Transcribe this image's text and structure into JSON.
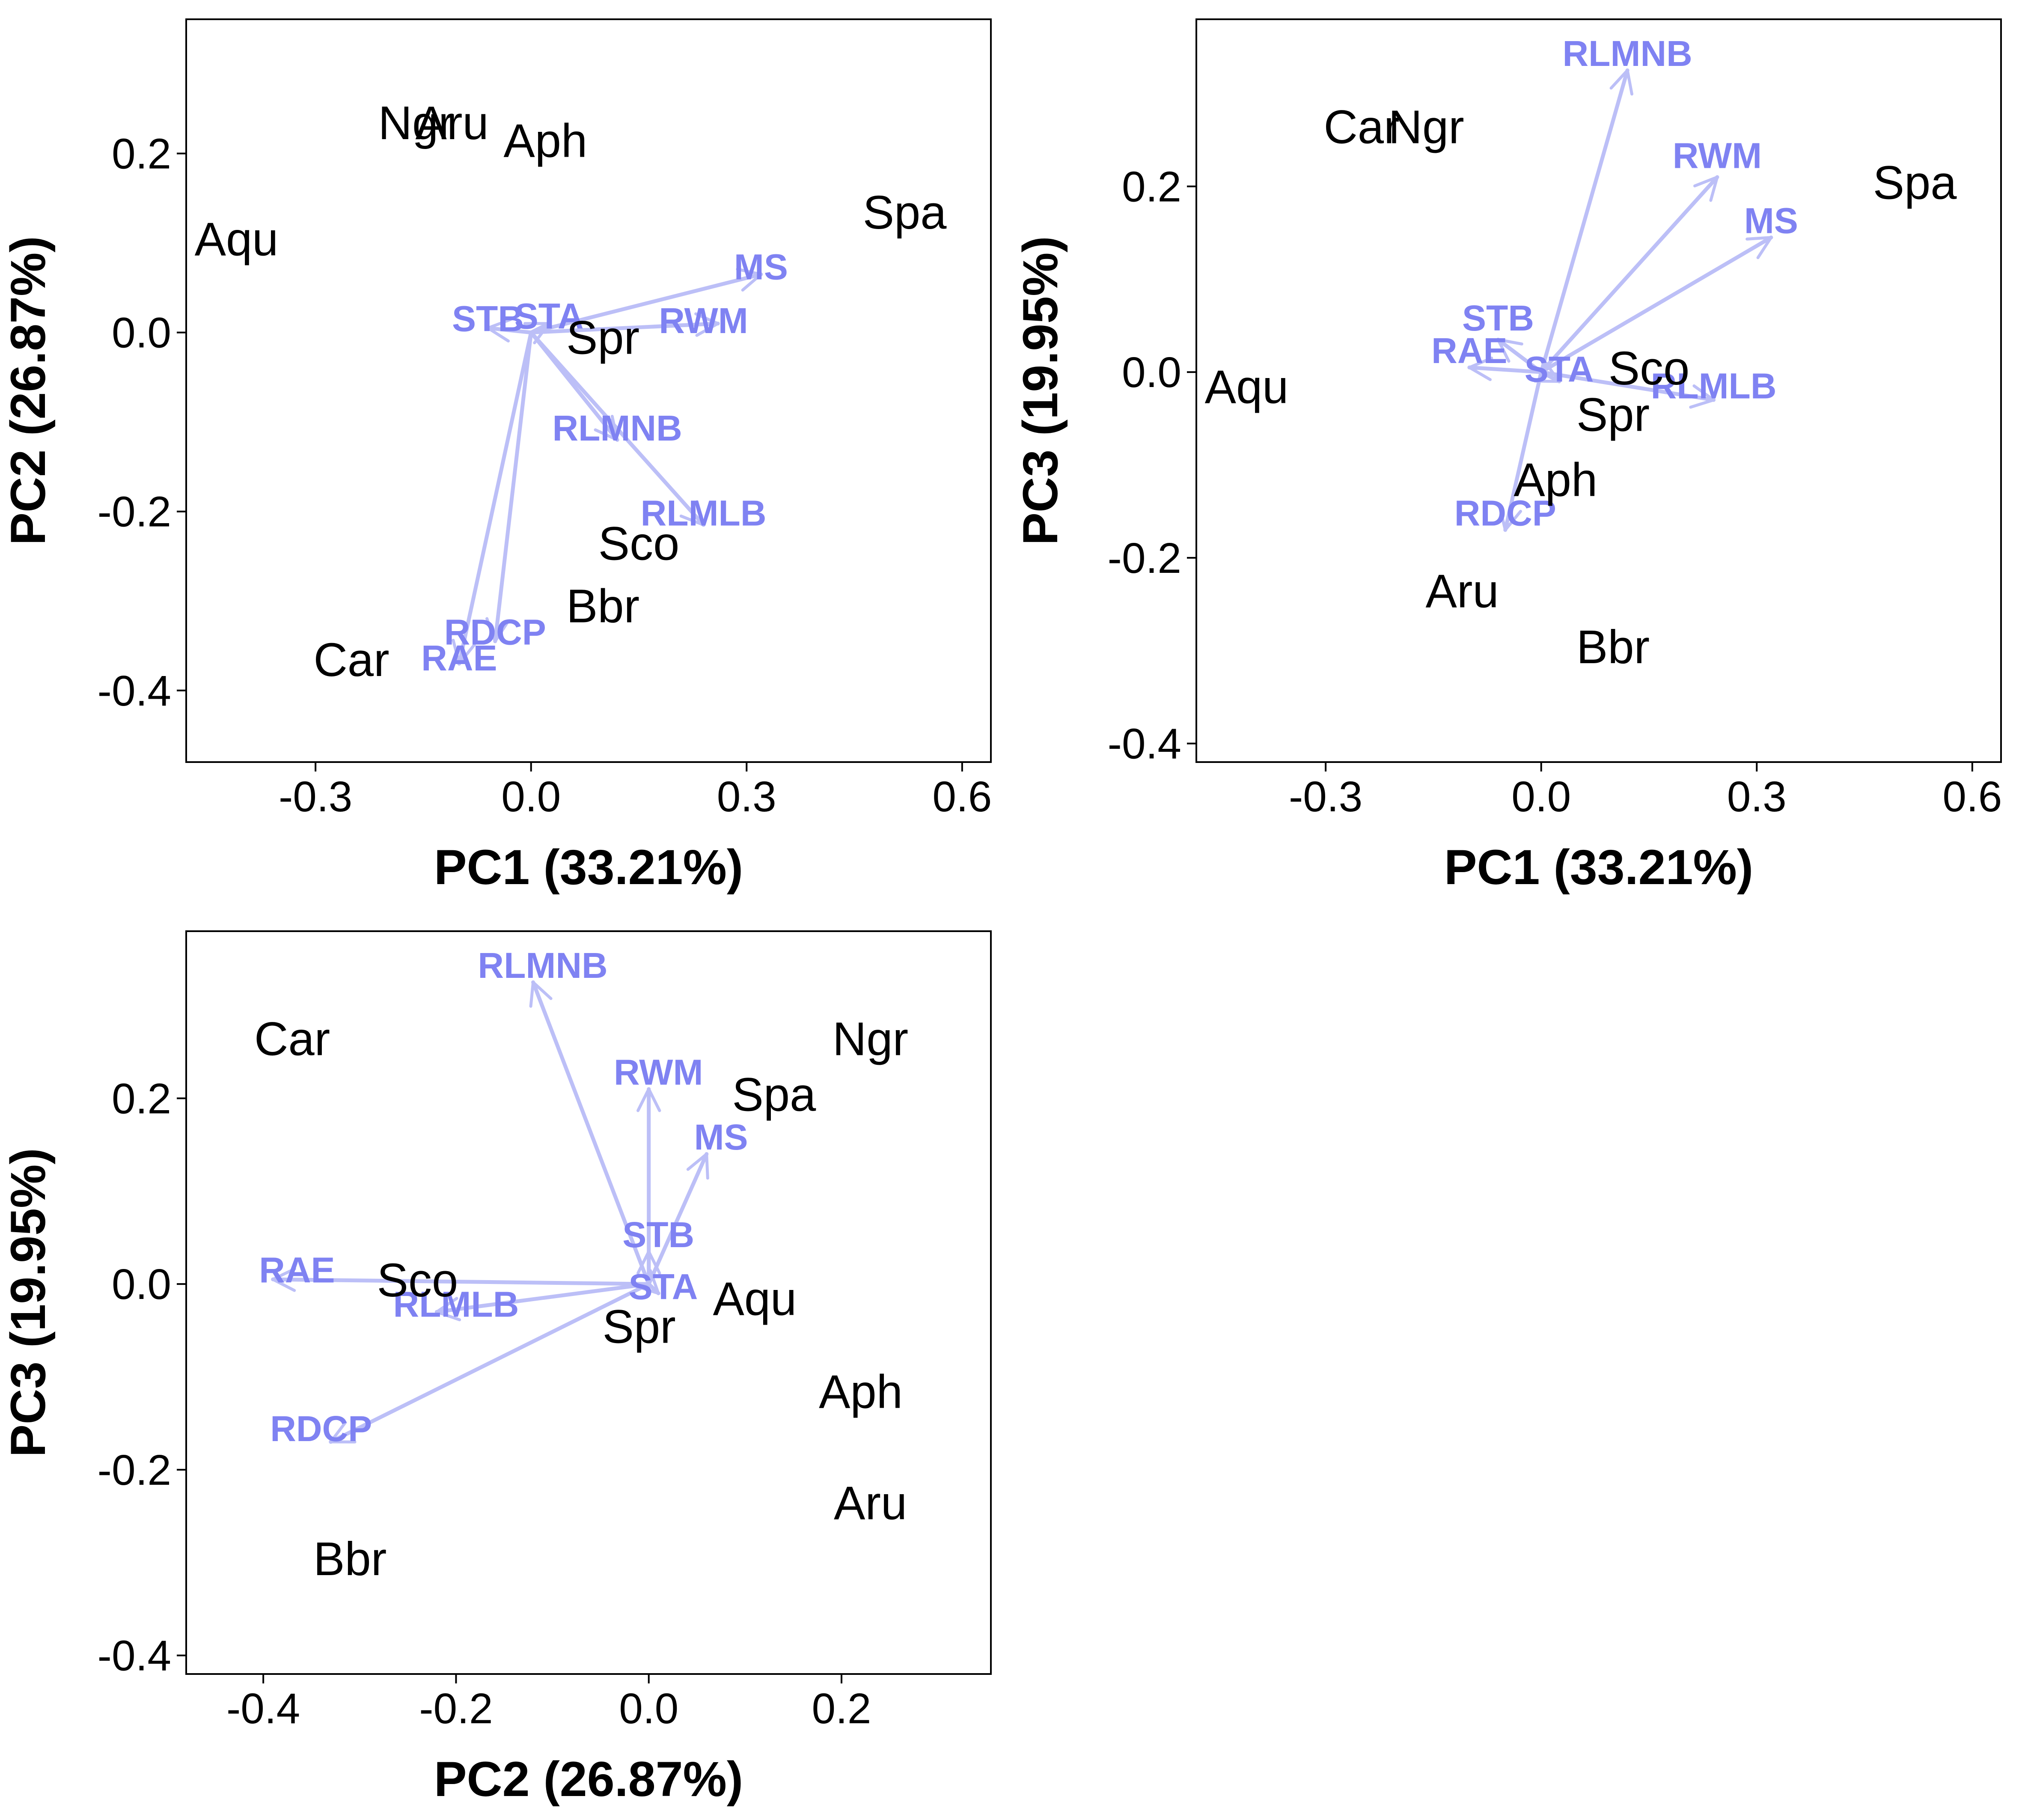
{
  "chart_data": [
    {
      "type": "scatter",
      "subtype": "biplot",
      "xlabel": "PC1 (33.21%)",
      "ylabel": "PC2 (26.87%)",
      "xlim": [
        -0.48,
        0.64
      ],
      "ylim": [
        -0.48,
        0.35
      ],
      "xticks": [
        -0.3,
        0.0,
        0.3,
        0.6
      ],
      "xtick_labels": [
        "-0.3",
        "0.0",
        "0.3",
        "0.6"
      ],
      "yticks": [
        0.2,
        0.0,
        -0.2,
        -0.4
      ],
      "ytick_labels": [
        "0.2",
        "0.0",
        "-0.2",
        "-0.4"
      ],
      "grid": false,
      "points": [
        {
          "label": "Ngr",
          "x": -0.16,
          "y": 0.23
        },
        {
          "label": "Aru",
          "x": -0.11,
          "y": 0.23
        },
        {
          "label": "Aph",
          "x": 0.02,
          "y": 0.21
        },
        {
          "label": "Aqu",
          "x": -0.41,
          "y": 0.1
        },
        {
          "label": "Spa",
          "x": 0.52,
          "y": 0.13
        },
        {
          "label": "Spr",
          "x": 0.1,
          "y": -0.01
        },
        {
          "label": "Sco",
          "x": 0.15,
          "y": -0.24
        },
        {
          "label": "Bbr",
          "x": 0.1,
          "y": -0.31
        },
        {
          "label": "Car",
          "x": -0.25,
          "y": -0.37
        }
      ],
      "loadings": [
        {
          "label": "MS",
          "x": 0.32,
          "y": 0.065,
          "lx": 0.32,
          "ly": 0.07
        },
        {
          "label": "STB",
          "x": -0.06,
          "y": 0.005,
          "lx": -0.06,
          "ly": 0.012
        },
        {
          "label": "STA",
          "x": 0.025,
          "y": 0.01,
          "lx": 0.025,
          "ly": 0.015
        },
        {
          "label": "RWM",
          "x": 0.26,
          "y": 0.01,
          "lx": 0.24,
          "ly": 0.01
        },
        {
          "label": "RLMNB",
          "x": 0.12,
          "y": -0.12,
          "lx": 0.12,
          "ly": -0.11
        },
        {
          "label": "RLMLB",
          "x": 0.24,
          "y": -0.215,
          "lx": 0.24,
          "ly": -0.205
        },
        {
          "label": "RDCP",
          "x": -0.05,
          "y": -0.345,
          "lx": -0.05,
          "ly": -0.338
        },
        {
          "label": "RAE",
          "x": -0.1,
          "y": -0.37,
          "lx": -0.1,
          "ly": -0.367
        }
      ]
    },
    {
      "type": "scatter",
      "subtype": "biplot",
      "xlabel": "PC1 (33.21%)",
      "ylabel": "PC3 (19.95%)",
      "xlim": [
        -0.48,
        0.64
      ],
      "ylim": [
        -0.42,
        0.38
      ],
      "xticks": [
        -0.3,
        0.0,
        0.3,
        0.6
      ],
      "xtick_labels": [
        "-0.3",
        "0.0",
        "0.3",
        "0.6"
      ],
      "yticks": [
        0.2,
        0.0,
        -0.2,
        -0.4
      ],
      "ytick_labels": [
        "0.2",
        "0.0",
        "-0.2",
        "-0.4"
      ],
      "grid": false,
      "points": [
        {
          "label": "Car",
          "x": -0.25,
          "y": 0.26
        },
        {
          "label": "Ngr",
          "x": -0.16,
          "y": 0.26
        },
        {
          "label": "Spa",
          "x": 0.52,
          "y": 0.2
        },
        {
          "label": "Aqu",
          "x": -0.41,
          "y": -0.02
        },
        {
          "label": "Sco",
          "x": 0.15,
          "y": 0.0
        },
        {
          "label": "Spr",
          "x": 0.1,
          "y": -0.05
        },
        {
          "label": "Aph",
          "x": 0.02,
          "y": -0.12
        },
        {
          "label": "Aru",
          "x": -0.11,
          "y": -0.24
        },
        {
          "label": "Bbr",
          "x": 0.1,
          "y": -0.3
        }
      ],
      "loadings": [
        {
          "label": "RLMNB",
          "x": 0.12,
          "y": 0.325,
          "lx": 0.12,
          "ly": 0.34
        },
        {
          "label": "RWM",
          "x": 0.245,
          "y": 0.21,
          "lx": 0.245,
          "ly": 0.23
        },
        {
          "label": "MS",
          "x": 0.32,
          "y": 0.145,
          "lx": 0.32,
          "ly": 0.16
        },
        {
          "label": "STB",
          "x": -0.06,
          "y": 0.035,
          "lx": -0.06,
          "ly": 0.055
        },
        {
          "label": "RAE",
          "x": -0.1,
          "y": 0.005,
          "lx": -0.1,
          "ly": 0.02
        },
        {
          "label": "STA",
          "x": 0.025,
          "y": -0.01,
          "lx": 0.025,
          "ly": 0.0
        },
        {
          "label": "RLMLB",
          "x": 0.24,
          "y": -0.03,
          "lx": 0.24,
          "ly": -0.018
        },
        {
          "label": "RDCP",
          "x": -0.05,
          "y": -0.17,
          "lx": -0.05,
          "ly": -0.155
        }
      ]
    },
    {
      "type": "scatter",
      "subtype": "biplot",
      "xlabel": "PC2 (26.87%)",
      "ylabel": "PC3 (19.95%)",
      "xlim": [
        -0.48,
        0.355
      ],
      "ylim": [
        -0.42,
        0.38
      ],
      "xticks": [
        -0.4,
        -0.2,
        0.0,
        0.2
      ],
      "xtick_labels": [
        "-0.4",
        "-0.2",
        "0.0",
        "0.2"
      ],
      "yticks": [
        0.2,
        0.0,
        -0.2,
        -0.4
      ],
      "ytick_labels": [
        "0.2",
        "0.0",
        "-0.2",
        "-0.4"
      ],
      "grid": false,
      "points": [
        {
          "label": "Car",
          "x": -0.37,
          "y": 0.26
        },
        {
          "label": "Ngr",
          "x": 0.23,
          "y": 0.26
        },
        {
          "label": "Spa",
          "x": 0.13,
          "y": 0.2
        },
        {
          "label": "Sco",
          "x": -0.24,
          "y": 0.0
        },
        {
          "label": "Aqu",
          "x": 0.11,
          "y": -0.02
        },
        {
          "label": "Spr",
          "x": -0.01,
          "y": -0.05
        },
        {
          "label": "Aph",
          "x": 0.22,
          "y": -0.12
        },
        {
          "label": "Aru",
          "x": 0.23,
          "y": -0.24
        },
        {
          "label": "Bbr",
          "x": -0.31,
          "y": -0.3
        }
      ],
      "loadings": [
        {
          "label": "RLMNB",
          "x": -0.12,
          "y": 0.325,
          "lx": -0.11,
          "ly": 0.34
        },
        {
          "label": "RWM",
          "x": 0.0,
          "y": 0.21,
          "lx": 0.01,
          "ly": 0.225
        },
        {
          "label": "MS",
          "x": 0.06,
          "y": 0.14,
          "lx": 0.075,
          "ly": 0.155
        },
        {
          "label": "STB",
          "x": 0.0,
          "y": 0.035,
          "lx": 0.01,
          "ly": 0.05
        },
        {
          "label": "RAE",
          "x": -0.39,
          "y": 0.005,
          "lx": -0.365,
          "ly": 0.012
        },
        {
          "label": "RLMLB",
          "x": -0.22,
          "y": -0.03,
          "lx": -0.2,
          "ly": -0.025
        },
        {
          "label": "STA",
          "x": 0.01,
          "y": -0.01,
          "lx": 0.015,
          "ly": -0.006
        },
        {
          "label": "RDCP",
          "x": -0.33,
          "y": -0.17,
          "lx": -0.34,
          "ly": -0.159
        }
      ]
    }
  ],
  "colors": {
    "loading_arrow": "#bcbff7",
    "loading_label": "#7f82f2",
    "point_label": "#000000",
    "axis": "#000000",
    "background": "#ffffff"
  }
}
